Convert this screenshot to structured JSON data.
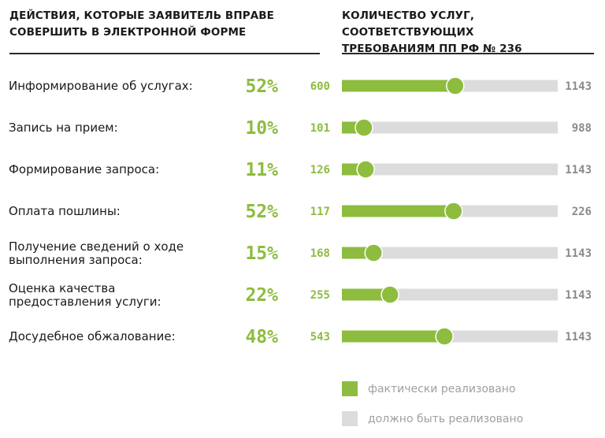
{
  "header": {
    "left_line1": "ДЕЙСТВИЯ, КОТОРЫЕ ЗАЯВИТЕЛЬ ВПРАВЕ",
    "left_line2": "СОВЕРШИТЬ В ЭЛЕКТРОННОЙ ФОРМЕ",
    "right_line1": "КОЛИЧЕСТВО УСЛУГ, СООТВЕТСТВУЮЩИХ",
    "right_line2": "ТРЕБОВАНИЯМ ПП РФ № 236"
  },
  "colors": {
    "actual": "#8dbc3f",
    "required": "#dcdcdc",
    "pct_text": "#8dbc3f",
    "total_text": "#8a8a8a"
  },
  "chart_data": {
    "type": "bar",
    "orientation": "horizontal",
    "categories": [
      [
        "Информирование об услугах:"
      ],
      [
        "Запись на прием:"
      ],
      [
        "Формирование запроса:"
      ],
      [
        "Оплата пошлины:"
      ],
      [
        "Получение сведений о ходе",
        "выполнения запроса:"
      ],
      [
        "Оценка качества",
        "предоставления услуги:"
      ],
      [
        "Досудебное обжалование:"
      ]
    ],
    "percent_labels": [
      "52%",
      "10%",
      "11%",
      "52%",
      "15%",
      "22%",
      "48%"
    ],
    "series": [
      {
        "name": "фактически реализовано",
        "values": [
          600,
          101,
          126,
          117,
          168,
          255,
          543
        ]
      },
      {
        "name": "должно быть реализовано",
        "values": [
          1143,
          988,
          1143,
          226,
          1143,
          1143,
          1143
        ]
      }
    ],
    "legend": {
      "position": "bottom-right",
      "items": [
        "фактически реализовано",
        "должно быть реализовано"
      ]
    }
  }
}
